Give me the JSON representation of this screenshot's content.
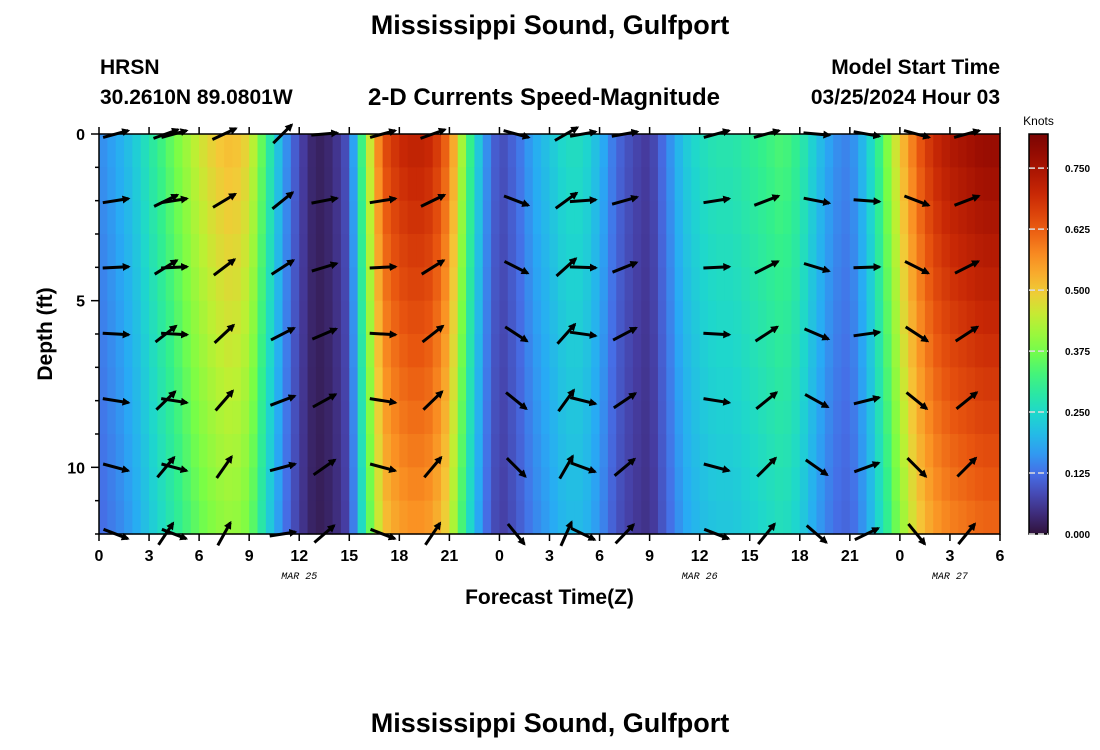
{
  "header": {
    "title": "Mississippi Sound, Gulfport",
    "station": "HRSN",
    "coordinates": "30.2610N  89.0801W",
    "subtitle": "2-D Currents Speed-Magnitude",
    "model_label": "Model Start Time",
    "model_start": "03/25/2024 Hour 03",
    "footer_title": "Mississippi Sound, Gulfport"
  },
  "chart_data": {
    "type": "heatmap",
    "title": "2-D Currents Speed-Magnitude",
    "xlabel": "Forecast Time(Z)",
    "ylabel": "Depth (ft)",
    "x_unit": "hours since Mar 25 00Z",
    "xlim": [
      0,
      54
    ],
    "ylim": [
      0,
      12
    ],
    "x_ticks": [
      0,
      3,
      6,
      9,
      12,
      15,
      18,
      21,
      24,
      27,
      30,
      33,
      36,
      39,
      42,
      45,
      48,
      51,
      54
    ],
    "x_tick_labels": [
      "0",
      "3",
      "6",
      "9",
      "12",
      "15",
      "18",
      "21",
      "0",
      "3",
      "6",
      "9",
      "12",
      "15",
      "18",
      "21",
      "0",
      "3",
      "6"
    ],
    "date_labels": [
      {
        "x": 12,
        "label": "MAR 25"
      },
      {
        "x": 36,
        "label": "MAR 26"
      },
      {
        "x": 51,
        "label": "MAR 27"
      }
    ],
    "y_ticks": [
      0,
      5,
      10
    ],
    "y_tick_labels": [
      "0",
      "5",
      "10"
    ],
    "colorbar": {
      "label": "Knots",
      "min": 0,
      "max": 0.82,
      "ticks": [
        "0.000",
        "0.125",
        "0.250",
        "0.375",
        "0.500",
        "0.625",
        "0.750"
      ]
    },
    "speed_profile": {
      "hours": [
        0,
        1,
        2,
        3,
        4,
        5,
        6,
        7,
        8,
        9,
        10,
        11,
        12,
        13,
        14,
        15,
        16,
        17,
        18,
        19,
        20,
        21,
        22,
        23,
        24,
        25,
        26,
        27,
        28,
        29,
        30,
        31,
        32,
        33,
        34,
        35,
        36,
        37,
        38,
        39,
        40,
        41,
        42,
        43,
        44,
        45,
        46,
        47,
        48,
        49,
        50,
        51,
        52,
        53,
        54
      ],
      "speed_knots": [
        0.15,
        0.18,
        0.22,
        0.28,
        0.34,
        0.4,
        0.46,
        0.5,
        0.52,
        0.48,
        0.32,
        0.18,
        0.08,
        0.02,
        0.04,
        0.1,
        0.4,
        0.64,
        0.7,
        0.72,
        0.7,
        0.6,
        0.36,
        0.18,
        0.08,
        0.12,
        0.18,
        0.22,
        0.26,
        0.26,
        0.2,
        0.12,
        0.08,
        0.06,
        0.14,
        0.22,
        0.26,
        0.28,
        0.28,
        0.3,
        0.32,
        0.34,
        0.3,
        0.22,
        0.16,
        0.14,
        0.22,
        0.35,
        0.5,
        0.62,
        0.7,
        0.74,
        0.76,
        0.78,
        0.78
      ]
    },
    "vector_columns": [
      {
        "x": 1,
        "surface_dir_deg": 75
      },
      {
        "x": 4,
        "surface_dir_deg": 70
      },
      {
        "x": 4.5,
        "surface_dir_deg": 75
      },
      {
        "x": 7.5,
        "surface_dir_deg": 65
      },
      {
        "x": 11,
        "surface_dir_deg": 45
      },
      {
        "x": 13.5,
        "surface_dir_deg": 85
      },
      {
        "x": 17,
        "surface_dir_deg": 75
      },
      {
        "x": 20,
        "surface_dir_deg": 70
      },
      {
        "x": 25,
        "surface_dir_deg": 105
      },
      {
        "x": 28,
        "surface_dir_deg": 60
      },
      {
        "x": 29,
        "surface_dir_deg": 80
      },
      {
        "x": 31.5,
        "surface_dir_deg": 80
      },
      {
        "x": 37,
        "surface_dir_deg": 75
      },
      {
        "x": 40,
        "surface_dir_deg": 75
      },
      {
        "x": 43,
        "surface_dir_deg": 95
      },
      {
        "x": 46,
        "surface_dir_deg": 100
      },
      {
        "x": 49,
        "surface_dir_deg": 105
      },
      {
        "x": 52,
        "surface_dir_deg": 75
      }
    ]
  }
}
